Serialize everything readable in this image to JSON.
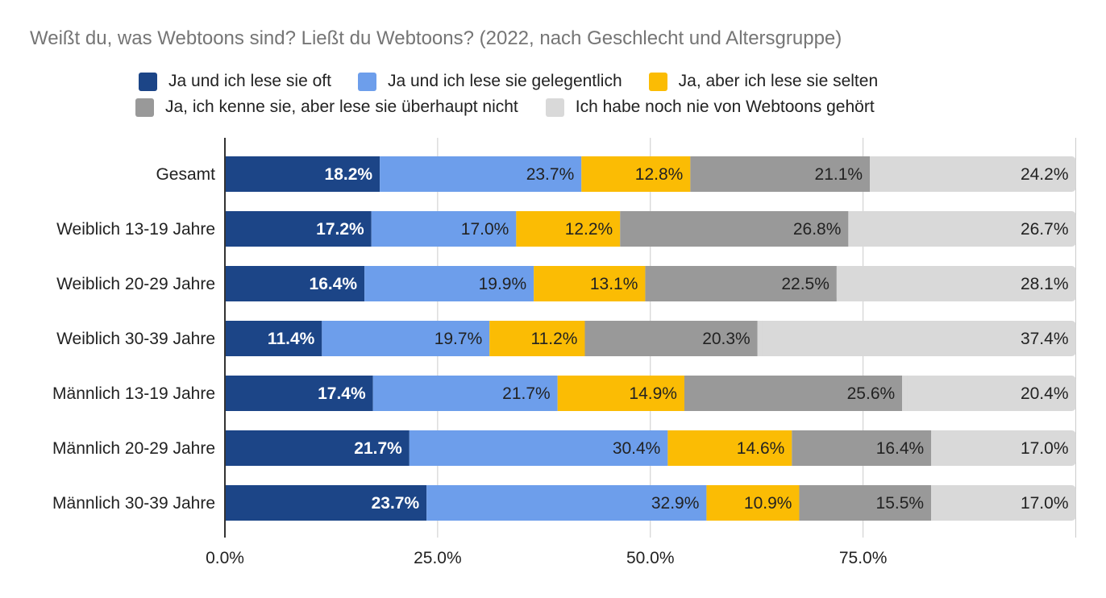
{
  "chart_data": {
    "type": "bar",
    "orientation": "horizontal",
    "stacked": true,
    "title": "Weißt du, was Webtoons sind? Ließt du Webtoons? (2022, nach Geschlecht und Altersgruppe)",
    "xlabel": "",
    "ylabel": "",
    "xlim": [
      0,
      100
    ],
    "x_ticks": [
      "0.0%",
      "25.0%",
      "50.0%",
      "75.0%"
    ],
    "grid": true,
    "legend_position": "top",
    "categories": [
      "Gesamt",
      "Weiblich 13-19 Jahre",
      "Weiblich 20-29 Jahre",
      "Weiblich 30-39 Jahre",
      "Männlich 13-19 Jahre",
      "Männlich 20-29 Jahre",
      "Männlich 30-39 Jahre"
    ],
    "series": [
      {
        "name": "Ja und ich lese sie oft",
        "color": "#1c4587",
        "label_color": "#ffffff",
        "values": [
          18.2,
          17.2,
          16.4,
          11.4,
          17.4,
          21.7,
          23.7
        ]
      },
      {
        "name": "Ja und ich lese sie gelegentlich",
        "color": "#6d9eeb",
        "label_color": "#222222",
        "values": [
          23.7,
          17.0,
          19.9,
          19.7,
          21.7,
          30.4,
          32.9
        ]
      },
      {
        "name": "Ja, aber ich lese sie selten",
        "color": "#fbbc04",
        "label_color": "#222222",
        "values": [
          12.8,
          12.2,
          13.1,
          11.2,
          14.9,
          14.6,
          10.9
        ]
      },
      {
        "name": "Ja, ich kenne sie, aber lese sie überhaupt nicht",
        "color": "#999999",
        "label_color": "#222222",
        "values": [
          21.1,
          26.8,
          22.5,
          20.3,
          25.6,
          16.4,
          15.5
        ]
      },
      {
        "name": "Ich habe noch nie von Webtoons gehört",
        "color": "#d9d9d9",
        "label_color": "#222222",
        "values": [
          24.2,
          26.7,
          28.1,
          37.4,
          20.4,
          17.0,
          17.0
        ]
      }
    ]
  }
}
